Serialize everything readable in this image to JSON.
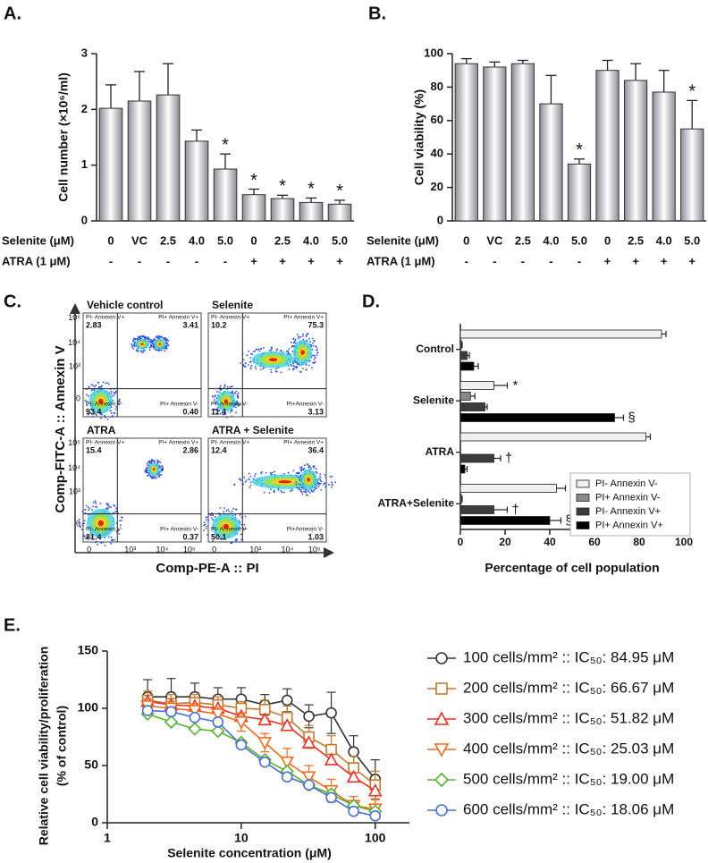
{
  "chart_data": [
    {
      "type": "bar",
      "panel_label": "A.",
      "ylabel": "Cell number (×10⁶/ml)",
      "values": [
        2.02,
        2.15,
        2.26,
        1.43,
        0.93,
        0.47,
        0.4,
        0.33,
        0.3
      ],
      "errors": [
        0.42,
        0.53,
        0.56,
        0.2,
        0.27,
        0.1,
        0.06,
        0.08,
        0.07
      ],
      "ylim": [
        0,
        3
      ],
      "yticks": [
        0,
        1,
        2,
        3
      ],
      "treatment_rows": [
        {
          "label": "Selenite (μM)",
          "values": [
            "0",
            "VC",
            "2.5",
            "4.0",
            "5.0",
            "0",
            "2.5",
            "4.0",
            "5.0"
          ]
        },
        {
          "label": "ATRA (1 μM)",
          "values": [
            "-",
            "-",
            "-",
            "-",
            "-",
            "+",
            "+",
            "+",
            "+"
          ]
        }
      ],
      "significance": [
        {
          "index": 4,
          "label": "*"
        },
        {
          "index": 5,
          "label": "*"
        },
        {
          "index": 6,
          "label": "*"
        },
        {
          "index": 7,
          "label": "*"
        },
        {
          "index": 8,
          "label": "*"
        }
      ]
    },
    {
      "type": "bar",
      "panel_label": "B.",
      "ylabel": "Cell viability (%)",
      "values": [
        94,
        92,
        94,
        70,
        34,
        90,
        84,
        77,
        55
      ],
      "errors": [
        3,
        3,
        2,
        17,
        3,
        6,
        10,
        13,
        17
      ],
      "ylim": [
        0,
        100
      ],
      "yticks": [
        0,
        20,
        40,
        60,
        80,
        100
      ],
      "treatment_rows": [
        {
          "label": "Selenite (μM)",
          "values": [
            "0",
            "VC",
            "2.5",
            "4.0",
            "5.0",
            "0",
            "2.5",
            "4.0",
            "5.0"
          ]
        },
        {
          "label": "ATRA (1 μM)",
          "values": [
            "-",
            "-",
            "-",
            "-",
            "-",
            "+",
            "+",
            "+",
            "+"
          ]
        }
      ],
      "significance": [
        {
          "index": 4,
          "label": "*"
        },
        {
          "index": 8,
          "label": "*"
        }
      ]
    },
    {
      "type": "barh",
      "panel_label": "D.",
      "xlabel": "Percentage of cell population",
      "categories": [
        "Control",
        "Selenite",
        "ATRA",
        "ATRA+Selenite"
      ],
      "series": [
        {
          "name": "PI- Annexin V-",
          "color": "#f0f0f0",
          "values": [
            90,
            15,
            83,
            43
          ],
          "errors": [
            2,
            6,
            2,
            4
          ]
        },
        {
          "name": "PI+ Annexin V-",
          "color": "#8a8a8a",
          "values": [
            0.5,
            4.5,
            0,
            0.5
          ],
          "errors": [
            0.3,
            2,
            0,
            0.3
          ]
        },
        {
          "name": "PI- Annexin V+",
          "color": "#3c3c3c",
          "values": [
            3,
            11,
            15,
            15
          ],
          "errors": [
            1,
            1,
            3,
            6
          ]
        },
        {
          "name": "PI+ Annexin V+",
          "color": "#000000",
          "values": [
            6,
            69,
            2,
            40
          ],
          "errors": [
            2,
            4,
            1,
            5
          ]
        }
      ],
      "xlim": [
        0,
        100
      ],
      "xticks": [
        0,
        20,
        40,
        60,
        80,
        100
      ],
      "significance": [
        {
          "category": 1,
          "series": 0,
          "label": "*"
        },
        {
          "category": 1,
          "series": 3,
          "label": "§"
        },
        {
          "category": 2,
          "series": 2,
          "label": "†"
        },
        {
          "category": 3,
          "series": 0,
          "label": "*"
        },
        {
          "category": 3,
          "series": 2,
          "label": "†"
        },
        {
          "category": 3,
          "series": 3,
          "label": "§"
        }
      ]
    },
    {
      "type": "line",
      "panel_label": "E.",
      "xlabel": "Selenite concentration (μM)",
      "ylabel": [
        "Relative cell viability/proliferation",
        "(% of control)"
      ],
      "x": [
        2,
        3,
        4.5,
        6.7,
        10,
        15,
        22,
        32,
        47,
        69,
        100
      ],
      "xlog": true,
      "xlim": [
        1,
        180
      ],
      "xticks": [
        1,
        10,
        100
      ],
      "ylim": [
        0,
        150
      ],
      "yticks": [
        0,
        50,
        100,
        150
      ],
      "series": [
        {
          "name": "100 cells/mm² :: IC₅₀: 84.95 μM",
          "color": "#333333",
          "marker": "circle",
          "values": [
            110,
            110,
            110,
            108,
            108,
            103,
            107,
            93,
            96,
            62,
            38
          ],
          "errors": [
            15,
            16,
            12,
            10,
            10,
            9,
            10,
            10,
            18,
            14,
            17
          ]
        },
        {
          "name": "200 cells/mm² :: IC₅₀: 66.67 μM",
          "color": "#c07a2c",
          "marker": "square",
          "values": [
            107,
            104,
            105,
            103,
            100,
            99,
            92,
            75,
            64,
            48,
            33
          ],
          "errors": [
            8,
            8,
            7,
            7,
            6,
            8,
            10,
            10,
            12,
            10,
            12
          ]
        },
        {
          "name": "300 cells/mm² :: IC₅₀: 51.82 μM",
          "color": "#e8312a",
          "marker": "triangle",
          "values": [
            106,
            103,
            102,
            100,
            93,
            90,
            85,
            70,
            55,
            40,
            28
          ]
        },
        {
          "name": "400 cells/mm² :: IC₅₀: 25.03 μM",
          "color": "#f06a20",
          "marker": "triangle-down",
          "values": [
            102,
            100,
            98,
            95,
            88,
            70,
            53,
            40,
            28,
            15,
            12
          ],
          "errors": [
            6,
            6,
            6,
            6,
            8,
            8,
            12,
            10,
            10,
            8,
            8
          ]
        },
        {
          "name": "500 cells/mm² :: IC₅₀: 19.00 μM",
          "color": "#5ab030",
          "marker": "diamond",
          "values": [
            95,
            88,
            82,
            80,
            70,
            55,
            45,
            33,
            25,
            15,
            10
          ]
        },
        {
          "name": "600 cells/mm² :: IC₅₀: 18.06 μM",
          "color": "#4a70d0",
          "marker": "circle",
          "values": [
            98,
            97,
            92,
            88,
            68,
            53,
            40,
            33,
            22,
            10,
            6
          ]
        }
      ]
    }
  ],
  "flow_cytometry": {
    "panel_label": "C.",
    "ylabel": "Comp-FITC-A :: Annexin V",
    "xlabel": "Comp-PE-A :: PI",
    "tick_labels": [
      "0",
      "10³",
      "10⁴",
      "10⁵"
    ],
    "plots": [
      {
        "title": "Vehicle control",
        "quadrants": [
          {
            "label": "PI- Annexin V+",
            "value": "2.83"
          },
          {
            "label": "PI+ Annexin V+",
            "value": "3.41"
          },
          {
            "label": "PI- Annexin V-",
            "value": "93.4"
          },
          {
            "label": "PI+ Annexin V-",
            "value": "0.40"
          }
        ]
      },
      {
        "title": "Selenite",
        "quadrants": [
          {
            "label": "PI- Annexin V+",
            "value": "10.2"
          },
          {
            "label": "PI+ Annexin V+",
            "value": "75.3"
          },
          {
            "label": "PI- Annexin V-",
            "value": "11.4"
          },
          {
            "label": "PI+Annexin V-",
            "value": "3.13"
          }
        ]
      },
      {
        "title": "ATRA",
        "quadrants": [
          {
            "label": "PI- Annexin V+",
            "value": "15.4"
          },
          {
            "label": "PI+ Annexin V+",
            "value": "2.86"
          },
          {
            "label": "PI- Annexin V-",
            "value": "81.4"
          },
          {
            "label": "PI+ Annexin V-",
            "value": "0.37"
          }
        ]
      },
      {
        "title": "ATRA + Selenite",
        "quadrants": [
          {
            "label": "PI- Annexin V+",
            "value": "12.4"
          },
          {
            "label": "PI+ Annexin V+",
            "value": "36.4"
          },
          {
            "label": "PI- Annexin V-",
            "value": "50.1"
          },
          {
            "label": "PI+Annexin V-",
            "value": "1.03"
          }
        ]
      }
    ]
  }
}
